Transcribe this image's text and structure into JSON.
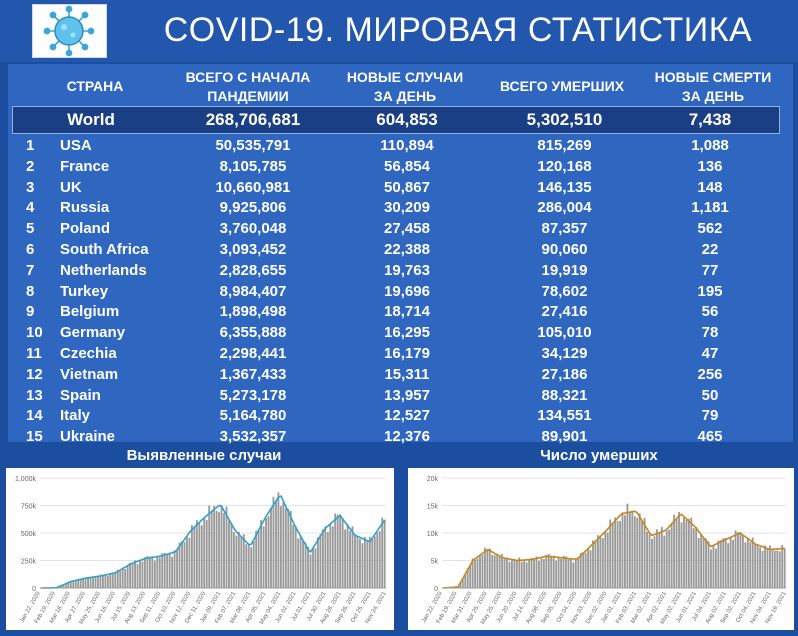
{
  "title": "COVID-19. МИРОВАЯ СТАТИСТИКА",
  "headers": {
    "country": "СТРАНА",
    "total_l1": "ВСЕГО С НАЧАЛА",
    "total_l2": "ПАНДЕМИИ",
    "new_l1": "НОВЫЕ СЛУЧАИ",
    "new_l2": "ЗА ДЕНЬ",
    "deaths": "ВСЕГО УМЕРШИХ",
    "newd_l1": "НОВЫЕ СМЕРТИ",
    "newd_l2": "ЗА ДЕНЬ"
  },
  "world": {
    "name": "World",
    "total": "268,706,681",
    "new": "604,853",
    "deaths": "5,302,510",
    "new_deaths": "7,438"
  },
  "rows": [
    {
      "rank": "1",
      "name": "USA",
      "total": "50,535,791",
      "new": "110,894",
      "deaths": "815,269",
      "new_deaths": "1,088"
    },
    {
      "rank": "2",
      "name": "France",
      "total": "8,105,785",
      "new": "56,854",
      "deaths": "120,168",
      "new_deaths": "136"
    },
    {
      "rank": "3",
      "name": "UK",
      "total": "10,660,981",
      "new": "50,867",
      "deaths": "146,135",
      "new_deaths": "148"
    },
    {
      "rank": "4",
      "name": "Russia",
      "total": "9,925,806",
      "new": "30,209",
      "deaths": "286,004",
      "new_deaths": "1,181"
    },
    {
      "rank": "5",
      "name": "Poland",
      "total": "3,760,048",
      "new": "27,458",
      "deaths": "87,357",
      "new_deaths": "562"
    },
    {
      "rank": "6",
      "name": "South Africa",
      "total": "3,093,452",
      "new": "22,388",
      "deaths": "90,060",
      "new_deaths": "22"
    },
    {
      "rank": "7",
      "name": "Netherlands",
      "total": "2,828,655",
      "new": "19,763",
      "deaths": "19,919",
      "new_deaths": "77"
    },
    {
      "rank": "8",
      "name": "Turkey",
      "total": "8,984,407",
      "new": "19,696",
      "deaths": "78,602",
      "new_deaths": "195"
    },
    {
      "rank": "9",
      "name": "Belgium",
      "total": "1,898,498",
      "new": "18,714",
      "deaths": "27,416",
      "new_deaths": "56"
    },
    {
      "rank": "10",
      "name": "Germany",
      "total": "6,355,888",
      "new": "16,295",
      "deaths": "105,010",
      "new_deaths": "78"
    },
    {
      "rank": "11",
      "name": "Czechia",
      "total": "2,298,441",
      "new": "16,179",
      "deaths": "34,129",
      "new_deaths": "47"
    },
    {
      "rank": "12",
      "name": "Vietnam",
      "total": "1,367,433",
      "new": "15,311",
      "deaths": "27,186",
      "new_deaths": "256"
    },
    {
      "rank": "13",
      "name": "Spain",
      "total": "5,273,178",
      "new": "13,957",
      "deaths": "88,321",
      "new_deaths": "50"
    },
    {
      "rank": "14",
      "name": "Italy",
      "total": "5,164,780",
      "new": "12,527",
      "deaths": "134,551",
      "new_deaths": "79"
    },
    {
      "rank": "15",
      "name": "Ukraine",
      "total": "3,532,357",
      "new": "12,376",
      "deaths": "89,901",
      "new_deaths": "465"
    }
  ],
  "colors": {
    "cases_line": "#2ea3c9",
    "deaths_line": "#c8861c",
    "bars": "#9a9a9a",
    "table_bg": "#2f66c0",
    "page_bg": "#1c4ea0"
  },
  "chart_data": [
    {
      "type": "bar",
      "title": "Выявленные случаи",
      "ylim": [
        0,
        1000000
      ],
      "yticks": [
        "0",
        "250k",
        "500k",
        "750k",
        "1,000k"
      ],
      "xticks": [
        "Jan 22, 2020",
        "Feb 19, 2020",
        "Mar 18, 2020",
        "Apr 27, 2020",
        "May 25, 2020",
        "Jun 16, 2020",
        "Jul 15, 2020",
        "Aug 13, 2020",
        "Sep 11, 2020",
        "Oct 10, 2020",
        "Nov 12, 2020",
        "Dec 11, 2020",
        "Jan 09, 2021",
        "Feb 07, 2021",
        "Mar 08, 2021",
        "Apr 05, 2021",
        "May 04, 2021",
        "Jun 02, 2021",
        "Jul 01, 2021",
        "Jul 30, 2021",
        "Aug 28, 2021",
        "Sep 26, 2021",
        "Oct 25, 2021",
        "Nov 24, 2021"
      ],
      "series": [
        {
          "name": "",
          "values": [
            0,
            2000,
            60000,
            90000,
            110000,
            140000,
            220000,
            270000,
            290000,
            330000,
            520000,
            650000,
            760000,
            520000,
            380000,
            640000,
            850000,
            560000,
            320000,
            540000,
            660000,
            480000,
            420000,
            620000
          ]
        }
      ]
    },
    {
      "type": "bar",
      "title": "Число умерших",
      "ylim": [
        0,
        20000
      ],
      "yticks": [
        "0",
        "5k",
        "10k",
        "15k",
        "20k"
      ],
      "xticks": [
        "Jan 22, 2020",
        "Feb 19, 2020",
        "Mar 31, 2020",
        "Apr 25, 2020",
        "May 25, 2020",
        "Jun 20, 2020",
        "Jul 14, 2020",
        "Aug 08, 2020",
        "Sep 05, 2020",
        "Oct 04, 2020",
        "Nov 03, 2020",
        "Dec 02, 2020",
        "Jan 01, 2021",
        "Feb 03, 2021",
        "Mar 02, 2021",
        "Apr 02, 2021",
        "May 02, 2021",
        "Jun 01, 2021",
        "Jul 04, 2021",
        "Aug 02, 2021",
        "Sep 02, 2021",
        "Oct 04, 2021",
        "Nov 04, 2021",
        "Nov 19, 2021"
      ],
      "series": [
        {
          "name": "",
          "values": [
            0,
            200,
            5000,
            7000,
            5500,
            5000,
            5200,
            5800,
            5500,
            5200,
            7800,
            10500,
            13500,
            14000,
            9500,
            10500,
            13500,
            11000,
            7500,
            8800,
            10000,
            8000,
            7000,
            7200
          ]
        }
      ]
    }
  ]
}
